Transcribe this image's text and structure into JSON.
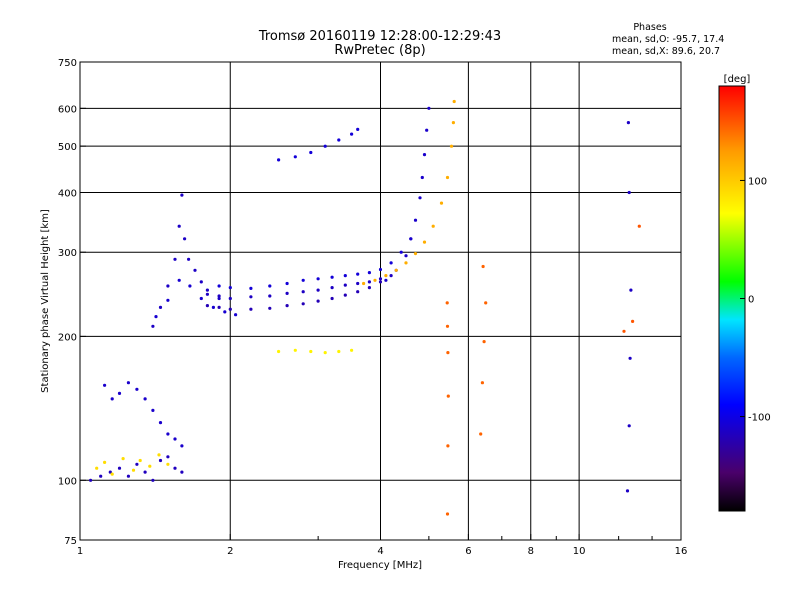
{
  "chart_data": {
    "type": "scatter",
    "title": "Tromsø 20160119 12:28:00-12:29:43",
    "subtitle": "RwPretec (8p)",
    "phase_stats": {
      "heading": "Phases",
      "line_o": "mean, sd,O: -95.7, 17.4",
      "line_x": "mean, sd,X:  89.6, 20.7"
    },
    "xlabel": "Frequency [MHz]",
    "ylabel": "Stationary phase Virtual Height [km]",
    "x_scale": "log",
    "y_scale": "log",
    "xlim": [
      1,
      16
    ],
    "ylim": [
      75,
      750
    ],
    "x_ticks": [
      1,
      2,
      4,
      6,
      8,
      10,
      16
    ],
    "x_gridlines": [
      2,
      4,
      6,
      8,
      10
    ],
    "y_ticks": [
      75,
      100,
      200,
      300,
      400,
      500,
      600,
      750
    ],
    "y_gridlines": [
      100,
      200,
      300,
      400,
      500,
      600
    ],
    "grid": true,
    "colorbar": {
      "label": "[deg]",
      "range": [
        -180,
        180
      ],
      "ticks": [
        100,
        0,
        -100
      ],
      "colormap": "rainbow (black-purple-blue-cyan-green-yellow-red)"
    },
    "series": [
      {
        "x": [
          1.12,
          1.16,
          1.2,
          1.25,
          1.3,
          1.35,
          1.4,
          1.45,
          1.5,
          1.55,
          1.6
        ],
        "y": [
          158,
          148,
          152,
          160,
          155,
          148,
          140,
          132,
          125,
          122,
          118
        ],
        "phase": -110
      },
      {
        "x": [
          1.05,
          1.1,
          1.15,
          1.2,
          1.25,
          1.3,
          1.35,
          1.4,
          1.45,
          1.5,
          1.55,
          1.6
        ],
        "y": [
          100,
          102,
          104,
          106,
          102,
          108,
          104,
          100,
          110,
          112,
          106,
          104
        ],
        "phase": -115
      },
      {
        "x": [
          1.08,
          1.12,
          1.16,
          1.22,
          1.28,
          1.32,
          1.38,
          1.44,
          1.5
        ],
        "y": [
          106,
          109,
          103,
          111,
          105,
          110,
          107,
          113,
          108
        ],
        "phase": 90
      },
      {
        "x": [
          1.4,
          1.45,
          1.5,
          1.55,
          1.58,
          1.6,
          1.62,
          1.65,
          1.7,
          1.75,
          1.8,
          1.9
        ],
        "y": [
          210,
          230,
          255,
          290,
          340,
          395,
          320,
          290,
          275,
          260,
          250,
          240
        ],
        "phase": -112
      },
      {
        "x": [
          1.42,
          1.5,
          1.58,
          1.66,
          1.75,
          1.85,
          1.95,
          2.05
        ],
        "y": [
          220,
          238,
          262,
          255,
          240,
          230,
          225,
          222
        ],
        "phase": -108
      },
      {
        "x": [
          1.8,
          1.9,
          2.0,
          2.2,
          2.4,
          2.6,
          2.8,
          3.0,
          3.2,
          3.4,
          3.6,
          3.8,
          4.0
        ],
        "y": [
          232,
          230,
          228,
          228,
          229,
          232,
          234,
          237,
          240,
          244,
          248,
          253,
          260
        ],
        "phase": -118
      },
      {
        "x": [
          1.8,
          1.9,
          2.0,
          2.2,
          2.4,
          2.6,
          2.8,
          3.0,
          3.2,
          3.4,
          3.6,
          3.8,
          4.0,
          4.2
        ],
        "y": [
          245,
          243,
          240,
          242,
          243,
          246,
          248,
          250,
          253,
          256,
          258,
          260,
          264,
          268
        ],
        "phase": -113
      },
      {
        "x": [
          1.9,
          2.0,
          2.2,
          2.4,
          2.6,
          2.8,
          3.0,
          3.2,
          3.4,
          3.6,
          3.8,
          4.0,
          4.2,
          4.4,
          4.6
        ],
        "y": [
          255,
          253,
          252,
          255,
          258,
          262,
          264,
          266,
          268,
          270,
          272,
          276,
          285,
          300,
          320
        ],
        "phase": -105
      },
      {
        "x": [
          4.1,
          4.3,
          4.5,
          4.6,
          4.7,
          4.8,
          4.85,
          4.9,
          4.95,
          5.0
        ],
        "y": [
          262,
          275,
          295,
          320,
          350,
          390,
          430,
          480,
          540,
          600
        ],
        "phase": -110
      },
      {
        "x": [
          2.5,
          2.7,
          2.9,
          3.1,
          3.3,
          3.5,
          3.6
        ],
        "y": [
          468,
          475,
          485,
          500,
          515,
          530,
          542
        ],
        "phase": -105
      },
      {
        "x": [
          3.7,
          3.9,
          4.1,
          4.3,
          4.5,
          4.7,
          4.9,
          5.1,
          5.3,
          5.45,
          5.55,
          5.6,
          5.62
        ],
        "y": [
          258,
          262,
          268,
          275,
          285,
          298,
          315,
          340,
          380,
          430,
          500,
          560,
          620
        ],
        "phase": 115
      },
      {
        "x": [
          2.5,
          2.7,
          2.9,
          3.1,
          3.3,
          3.5
        ],
        "y": [
          186,
          187,
          186,
          185,
          186,
          187
        ],
        "phase": 78
      },
      {
        "x": [
          5.45,
          5.46,
          5.47,
          5.46,
          5.45,
          5.44
        ],
        "y": [
          85,
          118,
          150,
          185,
          210,
          235
        ],
        "phase": 145
      },
      {
        "x": [
          6.35,
          6.4,
          6.45,
          6.5,
          6.42
        ],
        "y": [
          125,
          160,
          195,
          235,
          280
        ],
        "phase": 145
      },
      {
        "x": [
          12.5,
          12.6,
          12.65,
          12.7,
          12.6,
          12.55
        ],
        "y": [
          95,
          130,
          180,
          250,
          400,
          560
        ],
        "phase": -112
      },
      {
        "x": [
          12.3,
          12.8,
          13.2
        ],
        "y": [
          205,
          215,
          340
        ],
        "phase": 150
      }
    ]
  }
}
